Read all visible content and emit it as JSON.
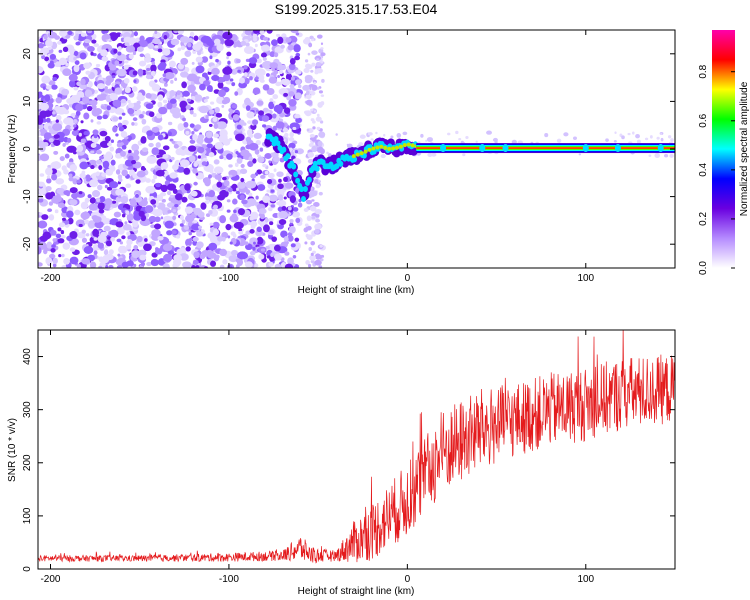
{
  "title": "S199.2025.315.17.53.E04",
  "chart_data": [
    {
      "type": "heatmap",
      "xlabel": "Height of straight line (km)",
      "ylabel": "Frequency (Hz)",
      "xlim": [
        -207,
        150
      ],
      "ylim": [
        -25,
        25
      ],
      "xticks": [
        -200,
        -100,
        0,
        100
      ],
      "yticks": [
        -20,
        -10,
        0,
        10,
        20
      ],
      "colorbar": {
        "label": "Normalized spectral amplitude",
        "range": [
          0,
          0.97
        ],
        "ticks": [
          0.0,
          0.2,
          0.4,
          0.6,
          0.8
        ],
        "tick_labels": [
          "0.0",
          "0.2",
          "0.4",
          "0.6",
          "0.8"
        ],
        "colors": [
          "#ffffff",
          "#b58bff",
          "#6a00e0",
          "#0000ff",
          "#00ffff",
          "#00ff00",
          "#ffff00",
          "#ff0000",
          "#ff00aa"
        ]
      },
      "features": {
        "noise_region_x": [
          -207,
          -60
        ],
        "noise_band_x": [
          -57,
          -47
        ],
        "noise_band_y": [
          -25,
          24
        ],
        "trace": [
          {
            "x": -78,
            "y": 2.5
          },
          {
            "x": -72,
            "y": 1
          },
          {
            "x": -68,
            "y": -1.5
          },
          {
            "x": -64,
            "y": -4
          },
          {
            "x": -61,
            "y": -7
          },
          {
            "x": -58,
            "y": -10
          },
          {
            "x": -53,
            "y": -4
          },
          {
            "x": -48,
            "y": -3
          },
          {
            "x": -44,
            "y": -3.8
          },
          {
            "x": -40,
            "y": -3
          },
          {
            "x": -35,
            "y": -2
          },
          {
            "x": -30,
            "y": -1.5
          },
          {
            "x": -25,
            "y": -0.8
          },
          {
            "x": -20,
            "y": 0
          },
          {
            "x": -15,
            "y": 0.5
          },
          {
            "x": -10,
            "y": 0
          },
          {
            "x": -5,
            "y": 0.3
          },
          {
            "x": 0,
            "y": 1
          },
          {
            "x": 5,
            "y": 0.6
          },
          {
            "x": 10,
            "y": 0.3
          },
          {
            "x": 20,
            "y": 0.2
          },
          {
            "x": 40,
            "y": 0.2
          },
          {
            "x": 80,
            "y": 0.2
          },
          {
            "x": 120,
            "y": 0.2
          },
          {
            "x": 150,
            "y": 0.2
          }
        ]
      }
    },
    {
      "type": "line",
      "xlabel": "Height of straight line (km)",
      "ylabel": "SNR (10 * v/v)",
      "xlim": [
        -207,
        150
      ],
      "ylim": [
        0,
        450
      ],
      "xticks": [
        -200,
        -100,
        0,
        100
      ],
      "yticks": [
        0,
        100,
        200,
        300,
        400
      ],
      "color": "#e41a1c",
      "envelope": [
        {
          "x": -207,
          "mean": 20,
          "amp": 6
        },
        {
          "x": -150,
          "mean": 20,
          "amp": 6
        },
        {
          "x": -100,
          "mean": 22,
          "amp": 8
        },
        {
          "x": -70,
          "mean": 25,
          "amp": 10
        },
        {
          "x": -60,
          "mean": 40,
          "amp": 25
        },
        {
          "x": -53,
          "mean": 25,
          "amp": 15
        },
        {
          "x": -40,
          "mean": 25,
          "amp": 10
        },
        {
          "x": -30,
          "mean": 50,
          "amp": 40
        },
        {
          "x": -20,
          "mean": 70,
          "amp": 55
        },
        {
          "x": 0,
          "mean": 130,
          "amp": 70
        },
        {
          "x": 20,
          "mean": 220,
          "amp": 80
        },
        {
          "x": 40,
          "mean": 260,
          "amp": 80
        },
        {
          "x": 60,
          "mean": 280,
          "amp": 70
        },
        {
          "x": 80,
          "mean": 300,
          "amp": 70
        },
        {
          "x": 100,
          "mean": 310,
          "amp": 70
        },
        {
          "x": 120,
          "mean": 330,
          "amp": 70
        },
        {
          "x": 150,
          "mean": 340,
          "amp": 65
        }
      ]
    }
  ]
}
